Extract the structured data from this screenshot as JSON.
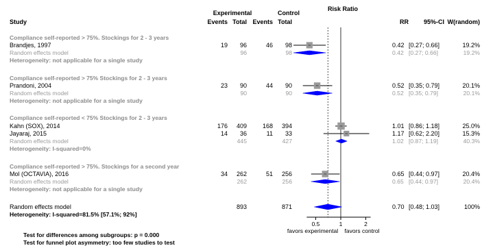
{
  "headers": {
    "study": "Study",
    "experimental": "Experimental",
    "control": "Control",
    "events1": "Events",
    "total1": "Total",
    "events2": "Events",
    "total2": "Total",
    "plot_title": "Risk Ratio",
    "rr": "RR",
    "ci": "95%-CI",
    "weight": "W(random)"
  },
  "subgroups": [
    {
      "title": "Compliance self-reported > 75%. Stockings for 2 - 3 years",
      "studies": [
        {
          "name": "Brandjes, 1997",
          "e_events": "19",
          "e_total": "96",
          "c_events": "46",
          "c_total": "98",
          "rr": 0.42,
          "lo": 0.27,
          "hi": 0.66,
          "rr_text": "0.42",
          "ci_text": "[0.27; 0.66]",
          "w_text": "19.2%"
        }
      ],
      "random": {
        "label": "Random effects model",
        "e_total": "96",
        "c_total": "98",
        "rr": 0.42,
        "lo": 0.27,
        "hi": 0.66,
        "rr_text": "0.42",
        "ci_text": "[0.27; 0.66]",
        "w_text": "19.2%"
      },
      "heterogeneity": "Heterogeneity: not applicable for a single study"
    },
    {
      "title": "Compliance self-reported > 75% Stockings for 2 - 3 years",
      "studies": [
        {
          "name": "Prandoni, 2004",
          "e_events": "23",
          "e_total": "90",
          "c_events": "44",
          "c_total": "90",
          "rr": 0.52,
          "lo": 0.35,
          "hi": 0.79,
          "rr_text": "0.52",
          "ci_text": "[0.35; 0.79]",
          "w_text": "20.1%"
        }
      ],
      "random": {
        "label": "Random effects model",
        "e_total": "90",
        "c_total": "90",
        "rr": 0.52,
        "lo": 0.35,
        "hi": 0.79,
        "rr_text": "0.52",
        "ci_text": "[0.35; 0.79]",
        "w_text": "20.1%"
      },
      "heterogeneity": "Heterogeneity: not applicable for a single study"
    },
    {
      "title": "Compliance self-reported < 75% Stockings for 2 - 3 years",
      "studies": [
        {
          "name": "Kahn (SOX), 2014",
          "e_events": "176",
          "e_total": "409",
          "c_events": "168",
          "c_total": "394",
          "rr": 1.01,
          "lo": 0.86,
          "hi": 1.18,
          "rr_text": "1.01",
          "ci_text": "[0.86; 1.18]",
          "w_text": "25.0%"
        },
        {
          "name": "Jayaraj, 2015",
          "e_events": "14",
          "e_total": "36",
          "c_events": "11",
          "c_total": "33",
          "rr": 1.17,
          "lo": 0.62,
          "hi": 2.2,
          "rr_text": "1.17",
          "ci_text": "[0.62; 2.20]",
          "w_text": "15.3%"
        }
      ],
      "random": {
        "label": "Random effects model",
        "e_total": "445",
        "c_total": "427",
        "rr": 1.02,
        "lo": 0.87,
        "hi": 1.19,
        "rr_text": "1.02",
        "ci_text": "[0.87; 1.19]",
        "w_text": "40.3%"
      },
      "heterogeneity": "Heterogeneity: I-squared=0%"
    },
    {
      "title": "Compliance self-reported > 75%. Stockings for a second year",
      "studies": [
        {
          "name": "Mol (OCTAVIA), 2016",
          "e_events": "34",
          "e_total": "262",
          "c_events": "51",
          "c_total": "256",
          "rr": 0.65,
          "lo": 0.44,
          "hi": 0.97,
          "rr_text": "0.65",
          "ci_text": "[0.44; 0.97]",
          "w_text": "20.4%"
        }
      ],
      "random": {
        "label": "Random effects model",
        "e_total": "262",
        "c_total": "256",
        "rr": 0.65,
        "lo": 0.44,
        "hi": 0.97,
        "rr_text": "0.65",
        "ci_text": "[0.44; 0.97]",
        "w_text": "20.4%"
      },
      "heterogeneity": "Heterogeneity: not applicable for a single study"
    }
  ],
  "overall": {
    "label": "Random effects model",
    "e_total": "893",
    "c_total": "871",
    "rr": 0.7,
    "lo": 0.48,
    "hi": 1.03,
    "rr_text": "0.70",
    "ci_text": "[0.48; 1.03]",
    "w_text": "100%",
    "heterogeneity": "Heterogeneity: I-squared=81.5% [57.1%; 92%]"
  },
  "axis": {
    "ticks": [
      0.5,
      1,
      2
    ],
    "tick_labels": [
      "0.5",
      "1",
      "2"
    ],
    "left_label": "favors experimental",
    "right_label": "favors control",
    "scale": "log"
  },
  "footer": {
    "subgroup_test": "Test for differences among subgroups: p = 0.000",
    "funnel_test": "Test for funnel plot asymmetry: too few studies to test"
  },
  "colors": {
    "diamond": "#0000ff",
    "square": "#9a9a9a",
    "grey_text": "#9a9a9a"
  },
  "chart_data": {
    "type": "forest",
    "title": "Risk Ratio",
    "x_scale": "log",
    "xticks": [
      0.5,
      1,
      2
    ],
    "null_line": 1,
    "overall_line": 0.7,
    "studies": [
      {
        "name": "Brandjes, 1997",
        "rr": 0.42,
        "lo": 0.27,
        "hi": 0.66,
        "weight": 19.2
      },
      {
        "name": "Prandoni, 2004",
        "rr": 0.52,
        "lo": 0.35,
        "hi": 0.79,
        "weight": 20.1
      },
      {
        "name": "Kahn (SOX), 2014",
        "rr": 1.01,
        "lo": 0.86,
        "hi": 1.18,
        "weight": 25.0
      },
      {
        "name": "Jayaraj, 2015",
        "rr": 1.17,
        "lo": 0.62,
        "hi": 2.2,
        "weight": 15.3
      },
      {
        "name": "Mol (OCTAVIA), 2016",
        "rr": 0.65,
        "lo": 0.44,
        "hi": 0.97,
        "weight": 20.4
      }
    ],
    "overall": {
      "rr": 0.7,
      "lo": 0.48,
      "hi": 1.03,
      "weight": 100
    }
  }
}
